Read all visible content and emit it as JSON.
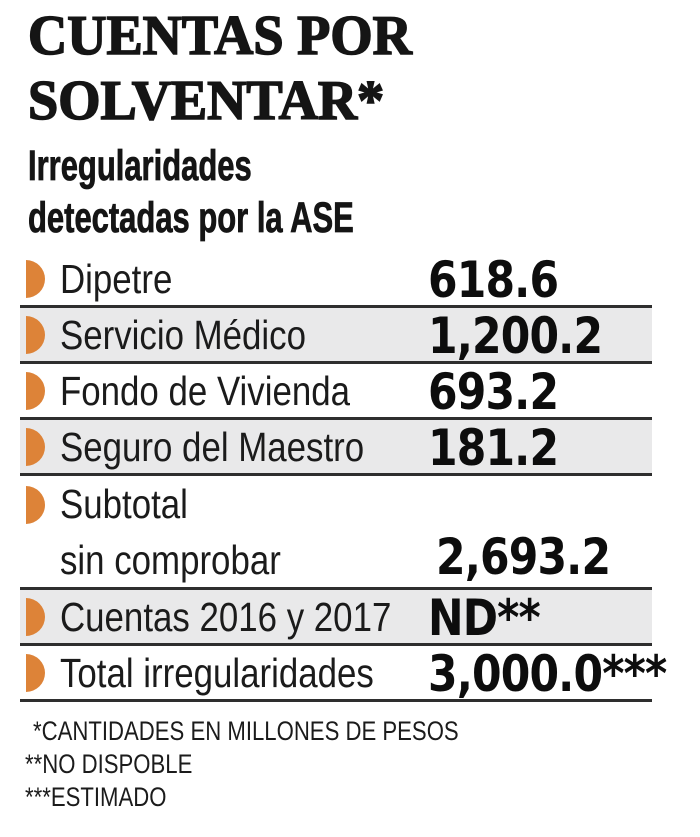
{
  "title_lines": [
    "CUENTAS POR",
    "SOLVENTAR*"
  ],
  "subtitle_lines": [
    "Irregularidades",
    "detectadas por la ASE"
  ],
  "table": {
    "rows": [
      {
        "label": "Dipetre",
        "value": "618.6",
        "shaded": false
      },
      {
        "label": "Servicio Médico",
        "value": "1,200.2",
        "shaded": true
      },
      {
        "label": "Fondo de Vivienda",
        "value": "693.2",
        "shaded": false
      },
      {
        "label": "Seguro del Maestro",
        "value": "181.2",
        "shaded": true
      },
      {
        "label": "Subtotal",
        "label_line2": "sin comprobar",
        "value": "2,693.2",
        "shaded": false
      },
      {
        "label": "Cuentas 2016 y 2017",
        "value": "ND**",
        "shaded": true
      },
      {
        "label": "Total irregularidades",
        "value": "3,000.0***",
        "shaded": false
      }
    ]
  },
  "footnotes": [
    "*CANTIDADES EN MILLONES DE PESOS",
    "**NO DISPOBLE",
    "***ESTIMADO"
  ],
  "colors": {
    "accent": "#DD8338",
    "row_shade": "#E9E9EA",
    "rule": "#2E2E2E",
    "ink": "#1A1A1A"
  },
  "chart_data": {
    "type": "table",
    "title": "CUENTAS POR SOLVENTAR*",
    "subtitle": "Irregularidades detectadas por la ASE",
    "unit": "millones de pesos",
    "categories": [
      "Dipetre",
      "Servicio Médico",
      "Fondo de Vivienda",
      "Seguro del Maestro",
      "Subtotal sin comprobar",
      "Cuentas 2016 y 2017",
      "Total irregularidades"
    ],
    "values": [
      618.6,
      1200.2,
      693.2,
      181.2,
      2693.2,
      null,
      3000.0
    ],
    "value_labels": [
      "618.6",
      "1,200.2",
      "693.2",
      "181.2",
      "2,693.2",
      "ND**",
      "3,000.0***"
    ],
    "footnotes": [
      "*CANTIDADES EN MILLONES DE PESOS",
      "**NO DISPOBLE",
      "***ESTIMADO"
    ]
  }
}
